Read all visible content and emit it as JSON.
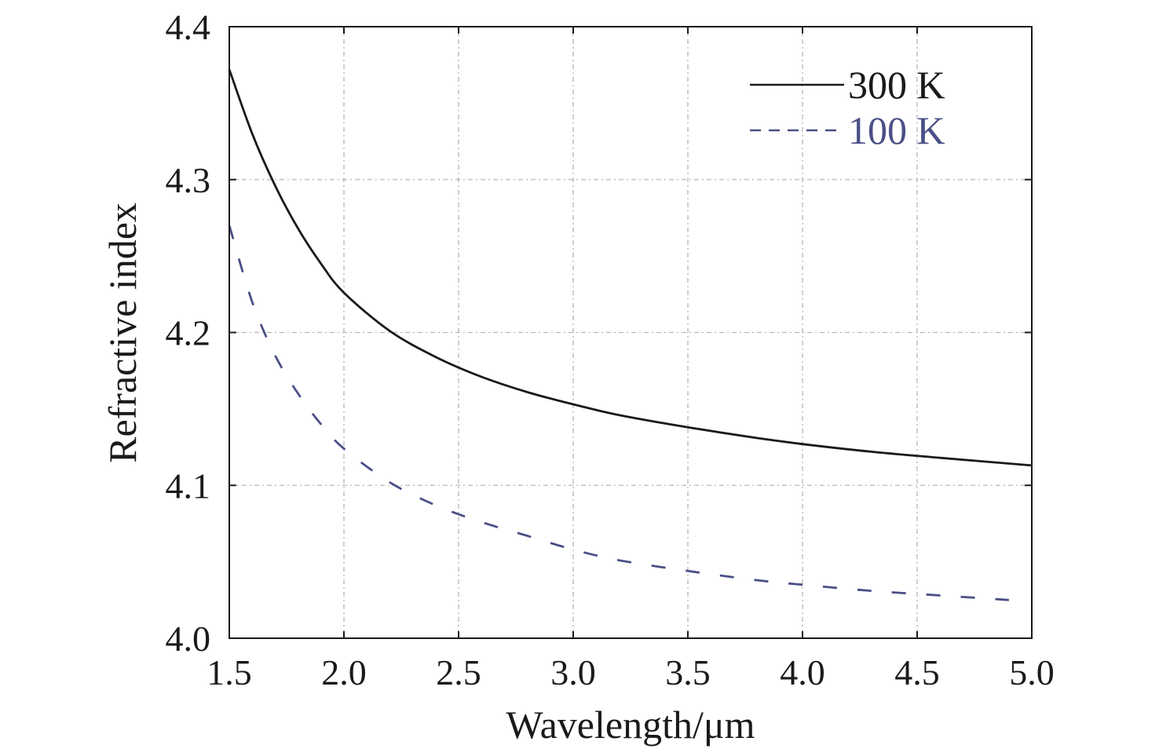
{
  "chart_data": {
    "type": "line",
    "xlabel": "Wavelength/μm",
    "ylabel": "Refractive index",
    "xlim": [
      1.5,
      5.0
    ],
    "ylim": [
      4.0,
      4.4
    ],
    "xticks": [
      1.5,
      2.0,
      2.5,
      3.0,
      3.5,
      4.0,
      4.5,
      5.0
    ],
    "yticks": [
      4.0,
      4.1,
      4.2,
      4.3,
      4.4
    ],
    "xtick_labels": [
      "1.5",
      "2.0",
      "2.5",
      "3.0",
      "3.5",
      "4.0",
      "4.5",
      "5.0"
    ],
    "ytick_labels": [
      "4.0",
      "4.1",
      "4.2",
      "4.3",
      "4.4"
    ],
    "grid": true,
    "legend_position": "top-right",
    "series": [
      {
        "name": "300 K",
        "color": "#1a1a1a",
        "style": "solid",
        "x": [
          1.5,
          1.6,
          1.7,
          1.8,
          1.9,
          2.0,
          2.2,
          2.4,
          2.6,
          2.8,
          3.0,
          3.2,
          3.5,
          3.8,
          4.0,
          4.3,
          4.6,
          5.0
        ],
        "y": [
          4.372,
          4.33,
          4.296,
          4.268,
          4.245,
          4.226,
          4.201,
          4.184,
          4.171,
          4.161,
          4.153,
          4.146,
          4.138,
          4.131,
          4.127,
          4.122,
          4.118,
          4.113
        ]
      },
      {
        "name": "100 K",
        "color": "#4a4f86",
        "style": "dashed",
        "x": [
          1.5,
          1.6,
          1.7,
          1.8,
          1.9,
          2.0,
          2.2,
          2.4,
          2.6,
          2.8,
          3.0,
          3.2,
          3.5,
          3.8,
          4.0,
          4.3,
          4.6,
          4.9
        ],
        "y": [
          4.27,
          4.22,
          4.185,
          4.16,
          4.14,
          4.124,
          4.102,
          4.087,
          4.076,
          4.067,
          4.058,
          4.051,
          4.044,
          4.038,
          4.035,
          4.031,
          4.028,
          4.025
        ]
      }
    ]
  }
}
